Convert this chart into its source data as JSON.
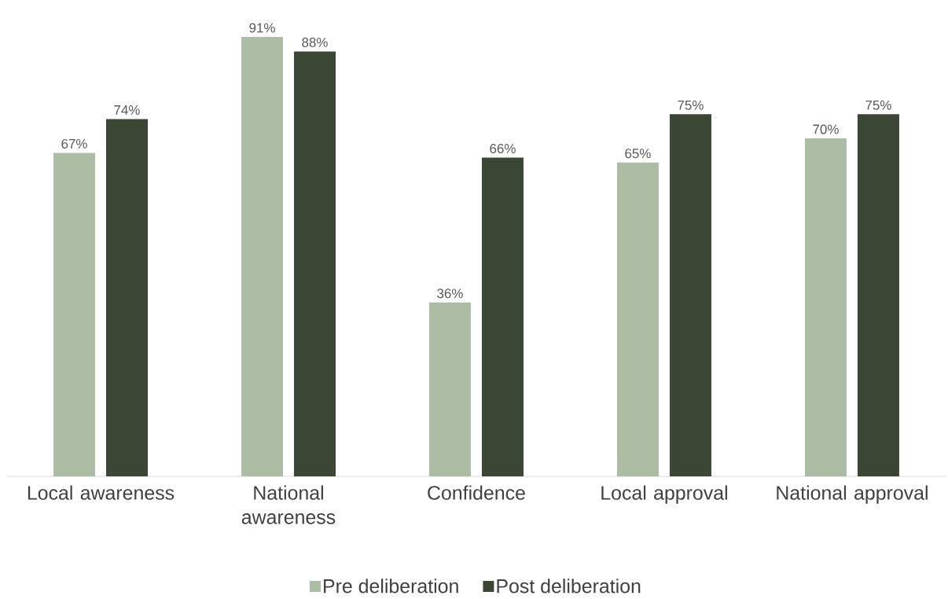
{
  "chart_data": {
    "type": "bar",
    "categories": [
      "Local awareness",
      "National awareness",
      "Confidence",
      "Local approval",
      "National approval"
    ],
    "series": [
      {
        "name": "Pre deliberation",
        "color": "#adbca5",
        "values": [
          67,
          91,
          36,
          65,
          70
        ],
        "value_labels": [
          "67%",
          "91%",
          "36%",
          "65%",
          "70%"
        ]
      },
      {
        "name": "Post deliberation",
        "color": "#3b4734",
        "values": [
          74,
          88,
          66,
          75,
          75
        ],
        "value_labels": [
          "74%",
          "88%",
          "66%",
          "75%",
          "75%"
        ]
      }
    ],
    "legend": "bottom",
    "tick_labels": "x"
  }
}
